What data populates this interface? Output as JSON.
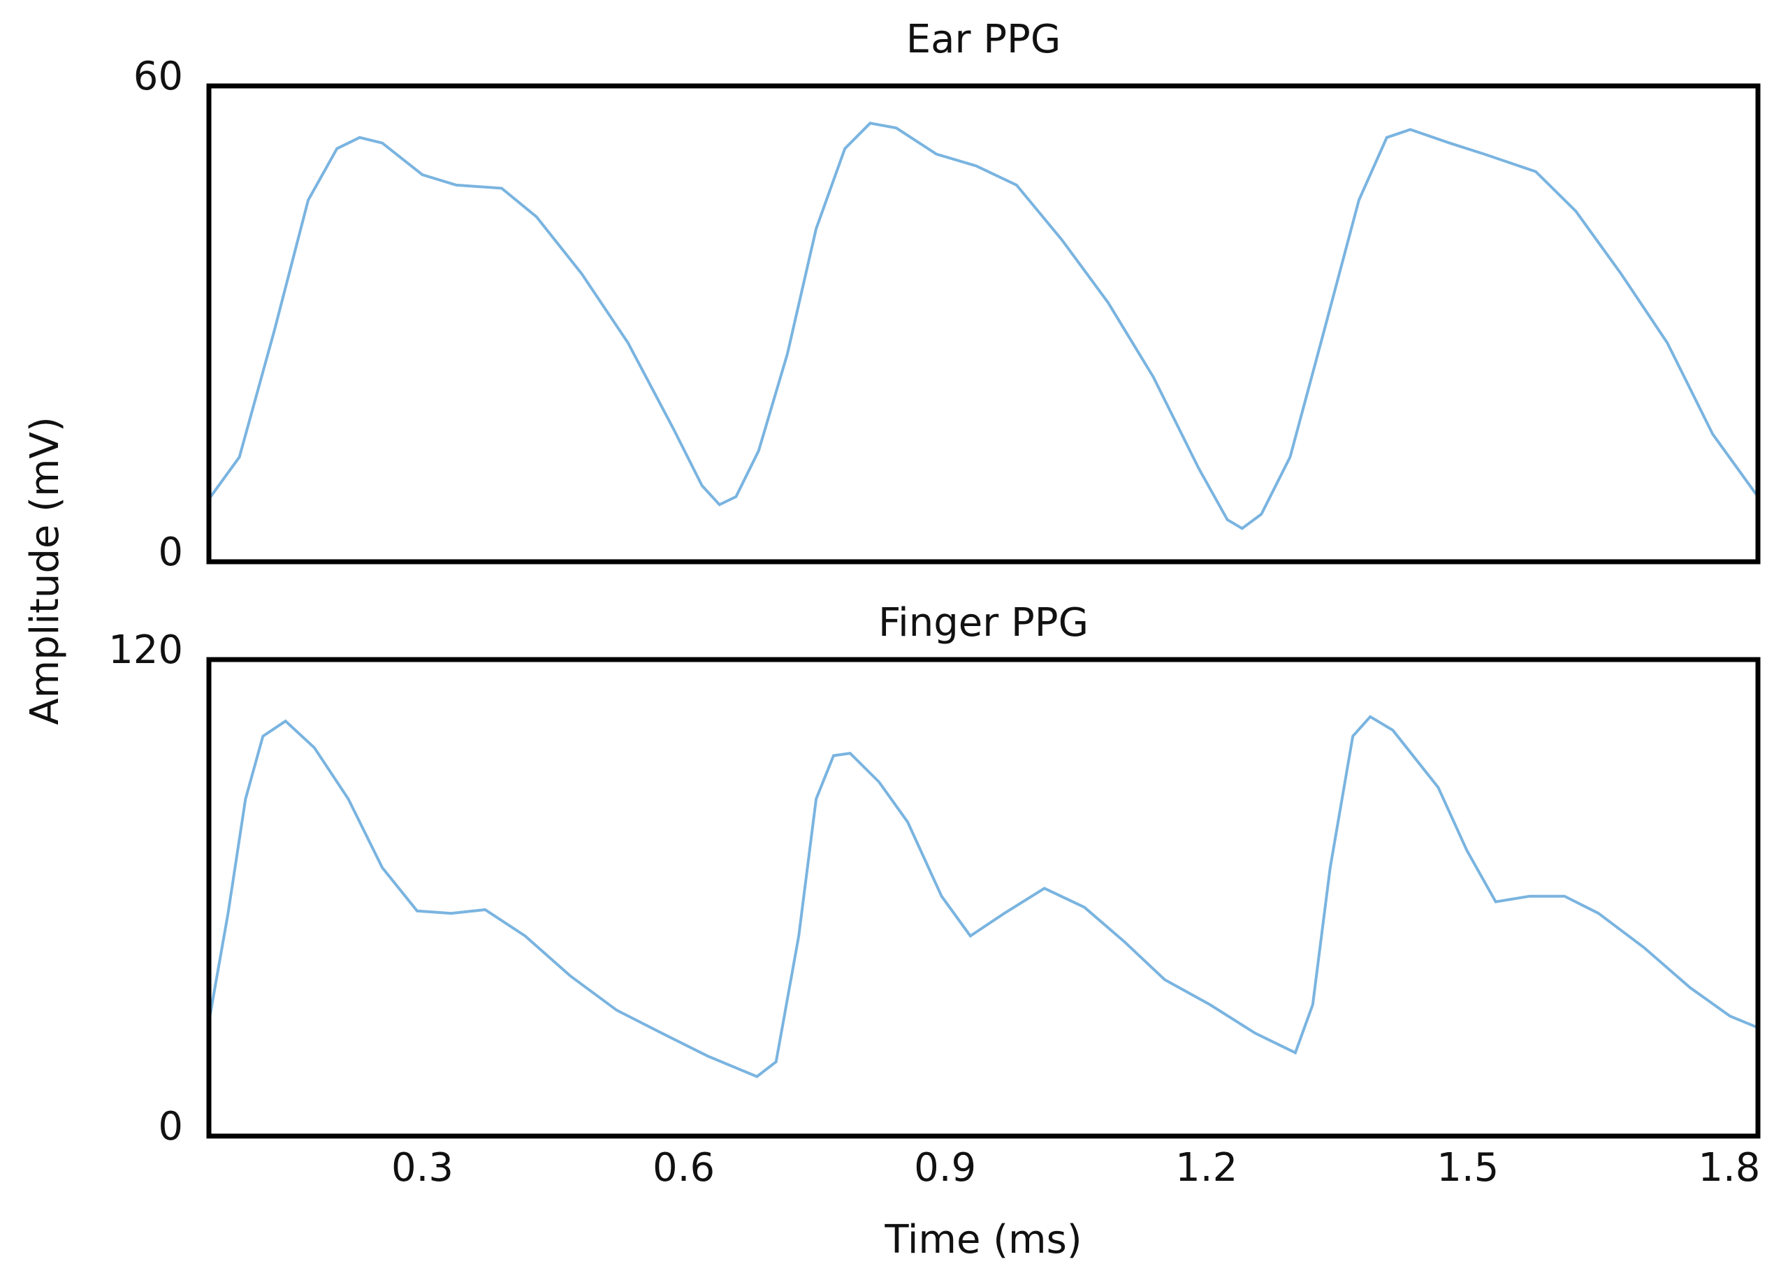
{
  "ylabel": "Amplitude (mV)",
  "chart_data": [
    {
      "type": "line",
      "title": "Ear PPG",
      "color": "#7ab4e0",
      "x": [
        0.055,
        0.09,
        0.13,
        0.169,
        0.202,
        0.228,
        0.254,
        0.3,
        0.339,
        0.391,
        0.431,
        0.483,
        0.536,
        0.588,
        0.621,
        0.641,
        0.66,
        0.686,
        0.719,
        0.752,
        0.785,
        0.814,
        0.844,
        0.89,
        0.936,
        0.982,
        1.034,
        1.087,
        1.139,
        1.191,
        1.224,
        1.241,
        1.263,
        1.296,
        1.335,
        1.375,
        1.407,
        1.434,
        1.479,
        1.519,
        1.578,
        1.624,
        1.676,
        1.729,
        1.781,
        1.833
      ],
      "values": [
        7.9,
        13.2,
        29.1,
        45.6,
        52.1,
        53.5,
        52.8,
        48.8,
        47.5,
        47.1,
        43.5,
        36.3,
        27.6,
        16.8,
        9.6,
        7.2,
        8.2,
        14.0,
        26.2,
        42.0,
        52.1,
        55.3,
        54.7,
        51.4,
        49.9,
        47.5,
        40.6,
        32.7,
        23.3,
        11.8,
        5.3,
        4.2,
        6.0,
        13.2,
        29.1,
        45.6,
        53.5,
        54.5,
        52.8,
        51.4,
        49.2,
        44.2,
        36.3,
        27.6,
        16.1,
        8.2
      ],
      "xlim": [
        0.055,
        1.833
      ],
      "ylim": [
        0,
        60
      ],
      "yticks": [
        0,
        60
      ]
    },
    {
      "type": "line",
      "title": "Finger PPG",
      "color": "#7ab4e0",
      "xlabel": "Time (ms)",
      "x": [
        0.055,
        0.077,
        0.097,
        0.117,
        0.143,
        0.176,
        0.215,
        0.254,
        0.294,
        0.333,
        0.372,
        0.418,
        0.47,
        0.523,
        0.575,
        0.628,
        0.684,
        0.706,
        0.732,
        0.752,
        0.772,
        0.791,
        0.824,
        0.857,
        0.896,
        0.929,
        0.968,
        1.014,
        1.06,
        1.106,
        1.152,
        1.204,
        1.256,
        1.302,
        1.322,
        1.342,
        1.368,
        1.388,
        1.414,
        1.466,
        1.499,
        1.532,
        1.571,
        1.611,
        1.65,
        1.702,
        1.755,
        1.801,
        1.833
      ],
      "values": [
        28.8,
        56.1,
        84.9,
        100.7,
        104.5,
        97.8,
        84.9,
        67.6,
        56.7,
        56.1,
        57.0,
        50.4,
        40.3,
        31.7,
        25.9,
        20.1,
        15.0,
        18.7,
        50.4,
        84.9,
        95.8,
        96.4,
        89.2,
        79.1,
        60.4,
        50.4,
        56.1,
        62.4,
        57.6,
        48.9,
        39.4,
        33.1,
        25.9,
        21.0,
        33.1,
        67.6,
        100.7,
        105.6,
        102.2,
        87.8,
        71.9,
        59.0,
        60.4,
        60.4,
        56.1,
        47.5,
        37.4,
        30.2,
        27.3
      ],
      "xlim": [
        0.055,
        1.833
      ],
      "xticks": [
        0.3,
        0.6,
        0.9,
        1.2,
        1.5,
        1.8
      ],
      "ylim": [
        0,
        120
      ],
      "yticks": [
        0,
        120
      ]
    }
  ]
}
